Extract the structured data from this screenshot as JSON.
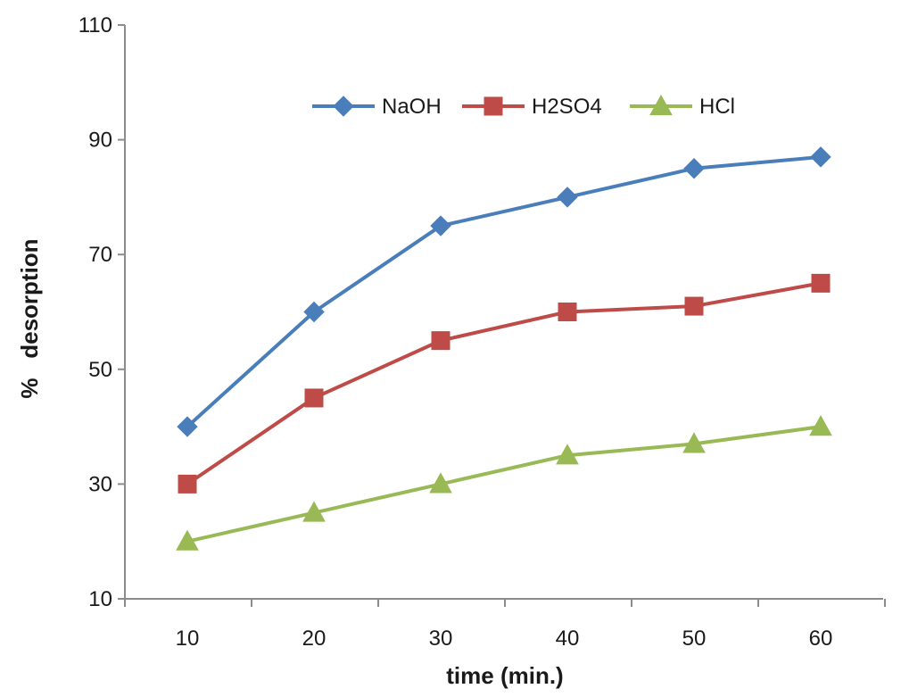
{
  "chart_data": {
    "type": "line",
    "title": "",
    "xlabel": "time (min.)",
    "ylabel": "%   desorption",
    "x": [
      10,
      20,
      30,
      40,
      50,
      60
    ],
    "xticks": [
      "10",
      "20",
      "30",
      "40",
      "50",
      "60"
    ],
    "ylim": [
      10,
      110
    ],
    "yticks": [
      10,
      30,
      50,
      70,
      90,
      110
    ],
    "grid": false,
    "legend_position": "top",
    "series": [
      {
        "name": "NaOH",
        "color": "#4a7ebb",
        "marker": "diamond",
        "values": [
          40,
          60,
          75,
          80,
          85,
          87
        ]
      },
      {
        "name": "H2SO4",
        "color": "#be4b48",
        "marker": "square",
        "values": [
          30,
          45,
          55,
          60,
          61,
          65
        ]
      },
      {
        "name": "HCl",
        "color": "#98b954",
        "marker": "triangle",
        "values": [
          20,
          25,
          30,
          35,
          37,
          40
        ]
      }
    ]
  }
}
